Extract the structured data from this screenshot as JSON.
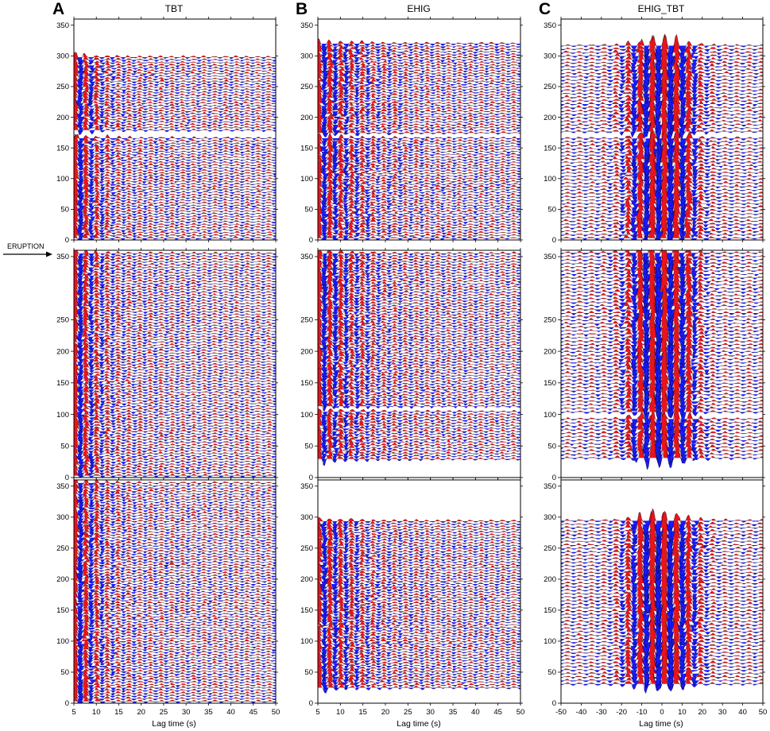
{
  "figure": {
    "annotation": "ERUPTION",
    "colors": {
      "positive": "#e8141c",
      "negative": "#1a1aff",
      "trace": "#000000"
    }
  },
  "chart_data": [
    {
      "type": "wiggle",
      "letter": "A",
      "title": "TBT",
      "xlabel": "Lag time (s)",
      "xlim": [
        5,
        50
      ],
      "xticks": [
        5,
        10,
        15,
        20,
        25,
        30,
        35,
        40,
        45,
        50
      ],
      "rows": [
        {
          "ylim": [
            0,
            360
          ],
          "yticks": [
            0,
            50,
            100,
            150,
            200,
            250,
            300,
            350
          ],
          "coverage": [
            [
              0,
              168
            ],
            [
              178,
              189
            ],
            [
              192,
              302
            ]
          ]
        },
        {
          "ylim": [
            0,
            360
          ],
          "yticks": [
            0,
            50,
            100,
            150,
            200,
            250,
            350
          ],
          "coverage": [
            [
              0,
              360
            ]
          ]
        },
        {
          "ylim": [
            0,
            360
          ],
          "yticks": [
            0,
            50,
            100,
            150,
            200,
            250,
            300,
            350
          ],
          "coverage": [
            [
              0,
              360
            ]
          ]
        }
      ]
    },
    {
      "type": "wiggle",
      "letter": "B",
      "title": "EHIG",
      "xlabel": "Lag time (s)",
      "xlim": [
        5,
        50
      ],
      "xticks": [
        5,
        10,
        15,
        20,
        25,
        30,
        35,
        40,
        45,
        50
      ],
      "rows": [
        {
          "ylim": [
            0,
            360
          ],
          "yticks": [
            0,
            50,
            100,
            150,
            200,
            250,
            300,
            350
          ],
          "coverage": [
            [
              0,
              168
            ],
            [
              173,
              320
            ]
          ]
        },
        {
          "ylim": [
            0,
            360
          ],
          "yticks": [
            0,
            50,
            100,
            150,
            200,
            250,
            350
          ],
          "coverage": [
            [
              28,
              108
            ],
            [
              113,
              360
            ]
          ]
        },
        {
          "ylim": [
            0,
            360
          ],
          "yticks": [
            0,
            50,
            100,
            150,
            200,
            250,
            300,
            350
          ],
          "coverage": [
            [
              25,
              297
            ]
          ]
        }
      ]
    },
    {
      "type": "wiggle",
      "letter": "C",
      "title": "EHIG_TBT",
      "xlabel": "Lag time (s)",
      "xlim": [
        -50,
        50
      ],
      "xticks": [
        -50,
        -40,
        -30,
        -20,
        -10,
        0,
        10,
        20,
        30,
        40,
        50
      ],
      "rows": [
        {
          "ylim": [
            0,
            360
          ],
          "yticks": [
            0,
            50,
            100,
            150,
            200,
            250,
            300,
            350
          ],
          "coverage": [
            [
              0,
              168
            ],
            [
              175,
              320
            ]
          ]
        },
        {
          "ylim": [
            0,
            360
          ],
          "yticks": [
            0,
            50,
            100,
            150,
            200,
            250,
            350
          ],
          "coverage": [
            [
              28,
              95
            ],
            [
              100,
              360
            ]
          ]
        },
        {
          "ylim": [
            0,
            360
          ],
          "yticks": [
            0,
            50,
            100,
            150,
            200,
            250,
            300,
            350
          ],
          "coverage": [
            [
              28,
              297
            ]
          ]
        }
      ]
    }
  ]
}
